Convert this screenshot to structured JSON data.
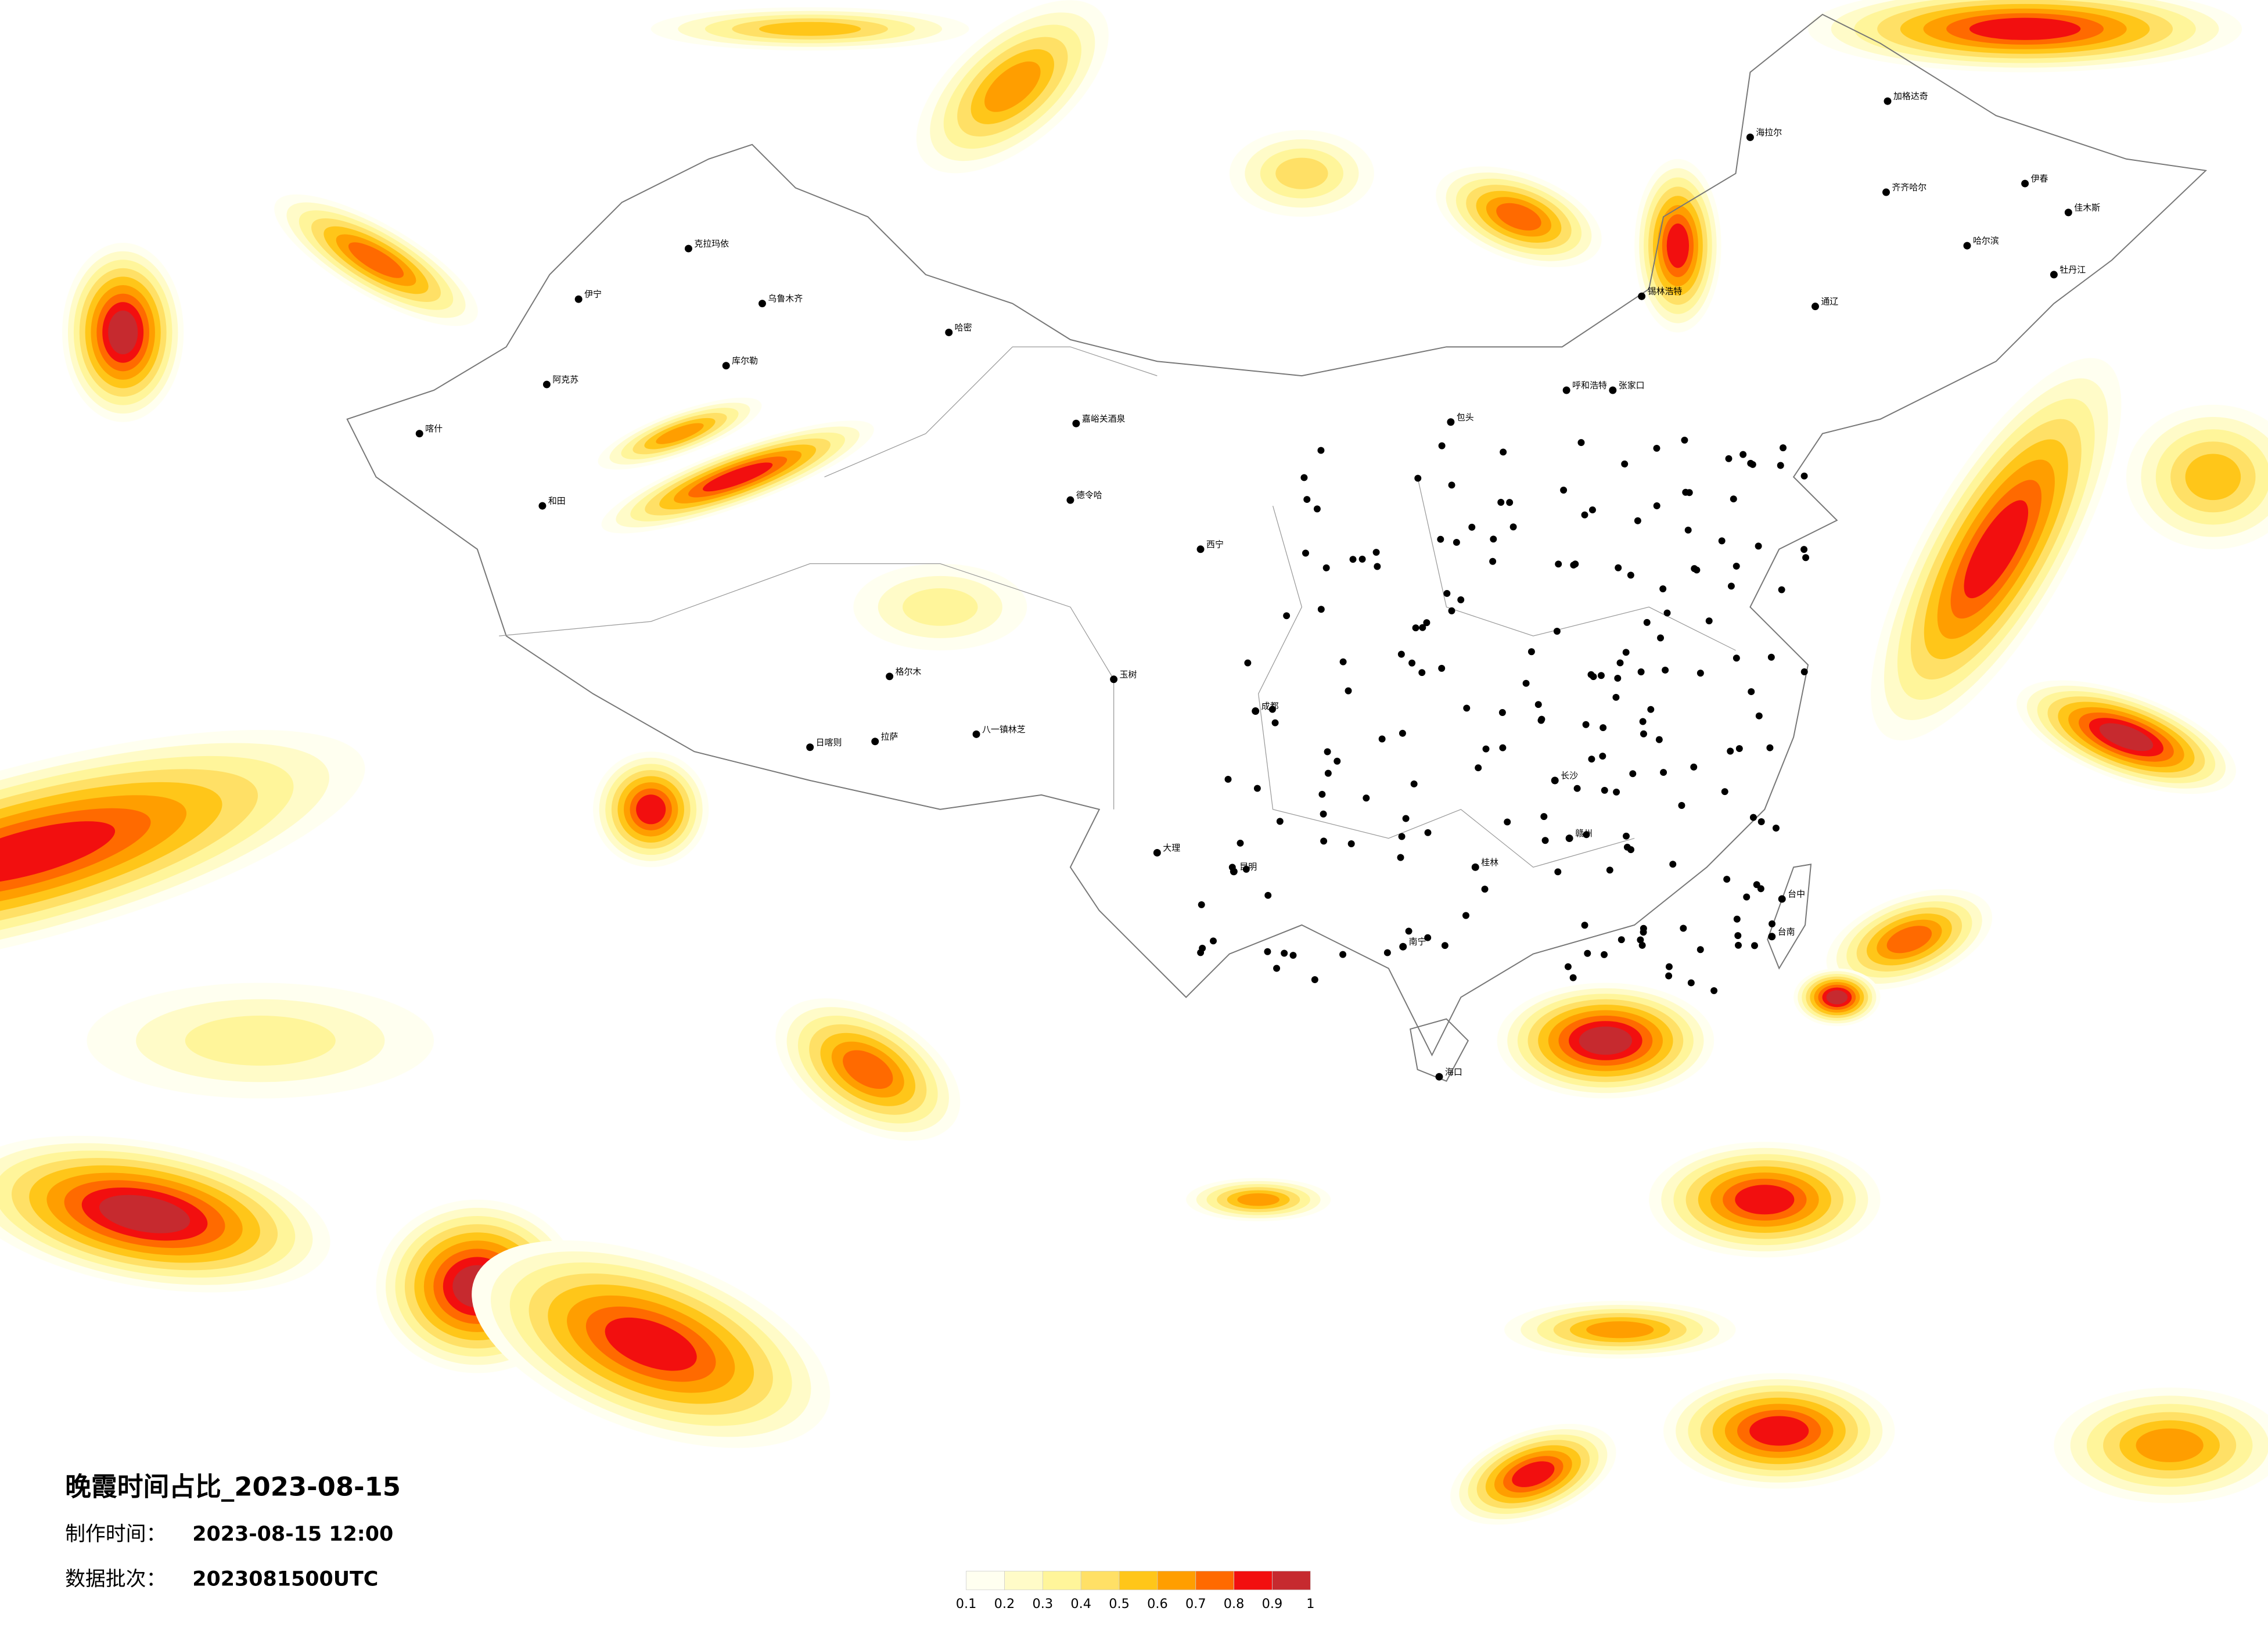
{
  "map": {
    "title": "晚霞时间占比_2023-08-15",
    "made_label": "制作时间：",
    "made_time": "2023-08-15 12:00",
    "batch_label": "数据批次：",
    "batch": "2023081500UTC",
    "colorbar": {
      "ticks": [
        0.1,
        0.2,
        0.3,
        0.4,
        0.5,
        0.6,
        0.7,
        0.8,
        0.9,
        1
      ],
      "colors": [
        "#fffff0",
        "#fffbc8",
        "#fff59a",
        "#ffe066",
        "#ffc619",
        "#ff9e00",
        "#ff6a00",
        "#f20f0f",
        "#c62a2f"
      ]
    },
    "cities": [
      "克拉玛依",
      "伊宁",
      "乌鲁木齐",
      "哈密",
      "库尔勒",
      "阿克苏",
      "喀什",
      "和田",
      "嘉峪关酒泉",
      "德令哈",
      "拉萨",
      "日喀则",
      "八一镇林芝",
      "格尔木",
      "海拉尔",
      "加格达奇",
      "齐齐哈尔",
      "哈尔滨",
      "呼和浩特",
      "张家口",
      "西宁",
      "昆明",
      "大理",
      "南宁",
      "海口",
      "台中",
      "台南",
      "玉树",
      "成都",
      "锡林浩特",
      "伊春",
      "佳木斯",
      "牡丹江",
      "通辽",
      "包头",
      "长沙",
      "桂林",
      "赣州"
    ]
  }
}
